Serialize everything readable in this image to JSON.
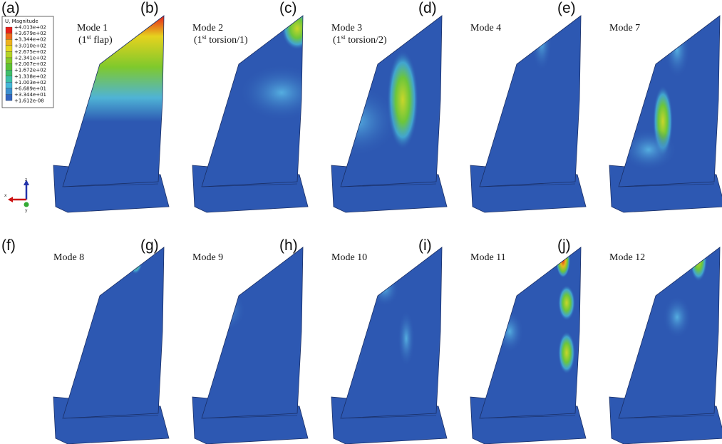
{
  "panels": [
    {
      "label": "(a)",
      "caption": [
        [
          "Mode 1"
        ],
        [
          "(1",
          "st",
          " flap)"
        ]
      ]
    },
    {
      "label": "(b)",
      "caption": [
        [
          "Mode 2"
        ],
        [
          "(1",
          "st",
          " torsion/1)"
        ]
      ]
    },
    {
      "label": "(c)",
      "caption": [
        [
          "Mode 3"
        ],
        [
          "(1",
          "st",
          " torsion/2)"
        ]
      ]
    },
    {
      "label": "(d)",
      "caption": [
        [
          "Mode 4"
        ]
      ]
    },
    {
      "label": "(e)",
      "caption": [
        [
          "Mode 7"
        ]
      ]
    },
    {
      "label": "(f)",
      "caption": [
        [
          "Mode 8"
        ]
      ]
    },
    {
      "label": "(g)",
      "caption": [
        [
          "Mode 9"
        ]
      ]
    },
    {
      "label": "(h)",
      "caption": [
        [
          "Mode 10"
        ]
      ]
    },
    {
      "label": "(i)",
      "caption": [
        [
          "Mode 11"
        ]
      ]
    },
    {
      "label": "(j)",
      "caption": [
        [
          "Mode 12"
        ]
      ]
    }
  ],
  "legend": {
    "title": "U, Magnitude",
    "values": [
      "+4.013e+02",
      "+3.679e+02",
      "+3.344e+02",
      "+3.010e+02",
      "+2.675e+02",
      "+2.341e+02",
      "+2.007e+02",
      "+1.672e+02",
      "+1.338e+02",
      "+1.003e+02",
      "+6.689e+01",
      "+3.344e+01",
      "+1.612e-08"
    ]
  },
  "triad": {
    "z": "z",
    "x": "x",
    "y": "y"
  }
}
